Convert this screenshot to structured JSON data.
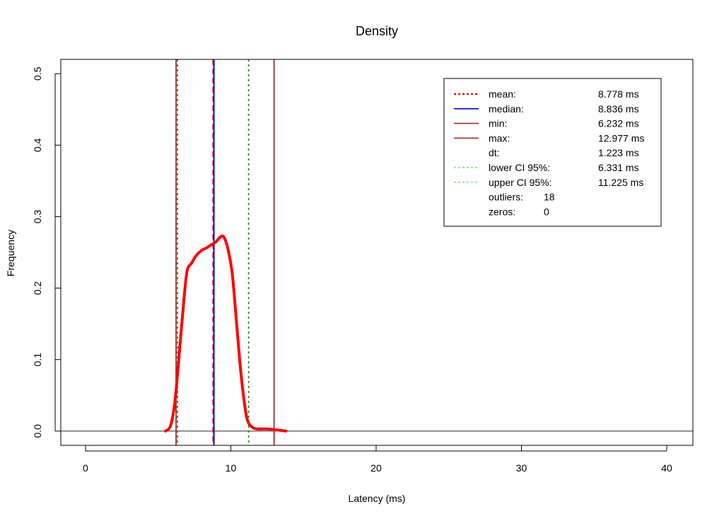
{
  "chart_data": {
    "type": "line",
    "title": "Density",
    "xlabel": "Latency (ms)",
    "ylabel": "Frequency",
    "xlim": [
      -1.7,
      41.8
    ],
    "ylim": [
      -0.02,
      0.52
    ],
    "x_ticks": [
      0,
      10,
      20,
      30,
      40
    ],
    "y_ticks": [
      0.0,
      0.1,
      0.2,
      0.3,
      0.4,
      0.5
    ],
    "x_tick_labels": [
      "0",
      "10",
      "20",
      "30",
      "40"
    ],
    "y_tick_labels": [
      "0.0",
      "0.1",
      "0.2",
      "0.3",
      "0.4",
      "0.5"
    ],
    "grid": false,
    "legend_position": "top-right",
    "density": {
      "color": "#ff0000",
      "x": [
        5.5,
        5.8,
        6.0,
        6.2,
        6.5,
        6.8,
        7.0,
        7.3,
        7.6,
        8.0,
        8.3,
        8.6,
        9.0,
        9.2,
        9.5,
        9.8,
        10.1,
        10.4,
        10.7,
        11.0,
        11.2,
        11.5,
        11.8,
        12.0,
        12.5,
        13.0,
        13.4,
        13.8
      ],
      "y": [
        0.0,
        0.005,
        0.02,
        0.05,
        0.12,
        0.19,
        0.225,
        0.235,
        0.245,
        0.253,
        0.256,
        0.26,
        0.265,
        0.27,
        0.272,
        0.255,
        0.22,
        0.15,
        0.08,
        0.03,
        0.012,
        0.005,
        0.003,
        0.003,
        0.003,
        0.002,
        0.001,
        0.0
      ]
    },
    "reference_lines": [
      {
        "name": "min",
        "x": 6.232,
        "color": "#a52a2a",
        "style": "solid"
      },
      {
        "name": "lower CI 95%",
        "x": 6.331,
        "color": "#228b22",
        "style": "dotted"
      },
      {
        "name": "mean",
        "x": 8.778,
        "color": "#ff0000",
        "style": "dashed"
      },
      {
        "name": "median",
        "x": 8.836,
        "color": "#0000ff",
        "style": "solid"
      },
      {
        "name": "upper CI 95%",
        "x": 11.225,
        "color": "#228b22",
        "style": "dotted"
      },
      {
        "name": "max",
        "x": 12.977,
        "color": "#a52a2a",
        "style": "solid"
      }
    ],
    "legend": [
      {
        "label": "mean:",
        "value": "8.778 ms",
        "color": "#ff0000",
        "style": "dotted"
      },
      {
        "label": "median:",
        "value": "8.836 ms",
        "color": "#0000ff",
        "style": "solid"
      },
      {
        "label": "min:",
        "value": "6.232 ms",
        "color": "#a52a2a",
        "style": "solid"
      },
      {
        "label": "max:",
        "value": "12.977 ms",
        "color": "#a52a2a",
        "style": "solid"
      },
      {
        "label": "dt:",
        "value": "1.223 ms",
        "color": "",
        "style": "none"
      },
      {
        "label": "lower CI 95%:",
        "value": "6.331 ms",
        "color": "#90ee90",
        "style": "dotted"
      },
      {
        "label": "upper CI 95%:",
        "value": "11.225 ms",
        "color": "#90ee90",
        "style": "dotted"
      },
      {
        "label": "outliers:",
        "value": "18",
        "color": "",
        "style": "none"
      },
      {
        "label": "zeros:",
        "value": "0",
        "color": "",
        "style": "none"
      }
    ]
  }
}
